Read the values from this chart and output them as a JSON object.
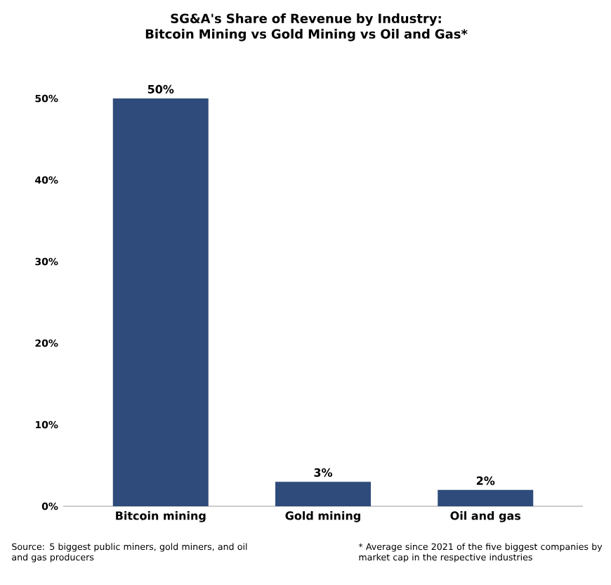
{
  "chart_data": {
    "type": "bar",
    "title": "SG&A's Share of Revenue by Industry: Bitcoin Mining vs Gold Mining vs Oil and Gas*",
    "categories": [
      "Bitcoin mining",
      "Gold mining",
      "Oil and gas"
    ],
    "values": [
      50,
      3,
      2
    ],
    "color": "#2e4b7b",
    "value_labels": [
      "50%",
      "3%",
      "2%"
    ],
    "ylim": [
      0,
      50
    ],
    "yticks": [
      {
        "value": 0,
        "label": "0%"
      },
      {
        "value": 10,
        "label": "10%"
      },
      {
        "value": 20,
        "label": "20%"
      },
      {
        "value": 30,
        "label": "30%"
      },
      {
        "value": 40,
        "label": "40%"
      },
      {
        "value": 50,
        "label": "50%"
      }
    ],
    "annotations": [
      "Source: 5 biggest public miners, gold miners, and oil and gas producers",
      "* Average since 2021 of the five biggest companies by market cap in the respective industries"
    ]
  }
}
